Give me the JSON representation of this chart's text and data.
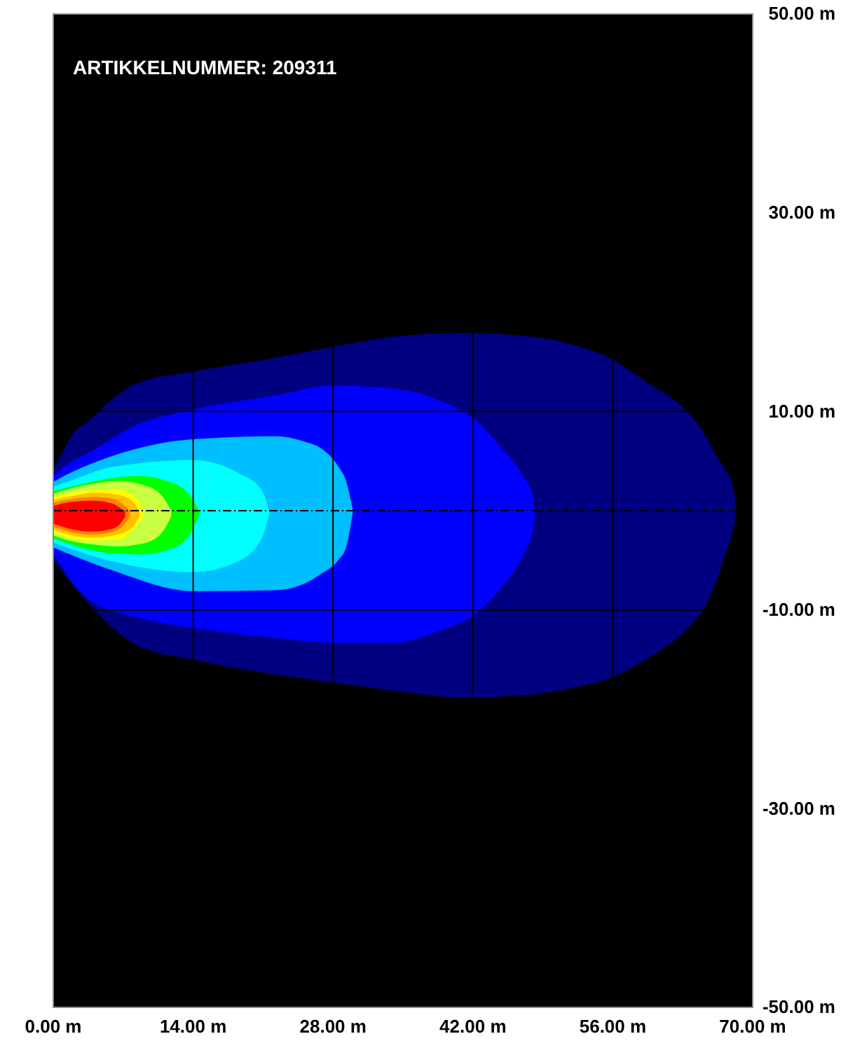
{
  "chart_data": {
    "type": "area",
    "title": "ARTIKKELNUMMER: 209311",
    "xlim": [
      0,
      70
    ],
    "xticks": [
      {
        "value": 0,
        "label": "0.00 m"
      },
      {
        "value": 14,
        "label": "14.00 m"
      },
      {
        "value": 28,
        "label": "28.00 m"
      },
      {
        "value": 42,
        "label": "42.00 m"
      },
      {
        "value": 56,
        "label": "56.00 m"
      },
      {
        "value": 70,
        "label": "70.00 m"
      }
    ],
    "ylim": [
      -50,
      50
    ],
    "yticks": [
      {
        "value": -50,
        "label": "-50.00 m"
      },
      {
        "value": -30,
        "label": "-30.00 m"
      },
      {
        "value": -10,
        "label": "-10.00 m"
      },
      {
        "value": 10,
        "label": "10.00 m"
      },
      {
        "value": 30,
        "label": "30.00 m"
      },
      {
        "value": 50,
        "label": "50.00 m"
      }
    ],
    "grid": true,
    "ref_lines": [
      {
        "axis": "y",
        "value": 0,
        "line_style": "dashed",
        "color": "#000000"
      }
    ],
    "series": [
      {
        "color": "#000080",
        "x": [
          0,
          1,
          2,
          3.5,
          6,
          8.3,
          14,
          22.3,
          28,
          34,
          41,
          48,
          52,
          55,
          59.6,
          63.4,
          65,
          66.2,
          67.2,
          68,
          68.4
        ],
        "values": [
          4.2,
          6,
          7.8,
          9,
          11.3,
          12.8,
          14,
          15.4,
          16.5,
          17.5,
          17.9,
          17.5,
          16.7,
          15.7,
          12.8,
          10,
          8,
          5.8,
          4.2,
          2.5,
          0
        ]
      },
      {
        "color": "#000080",
        "x": [
          0,
          8.3,
          14,
          22.3,
          28,
          34,
          41,
          48,
          52,
          55,
          59.6,
          63.4,
          65,
          66.2,
          67.2,
          68,
          68.4
        ],
        "values": [
          -5,
          -13.5,
          -15,
          -16.5,
          -17.3,
          -18.1,
          -18.8,
          -18.5,
          -17.8,
          -17.1,
          -14.8,
          -11.9,
          -10,
          -7.5,
          -4.5,
          -2,
          0
        ]
      },
      {
        "color": "#0000ff",
        "x": [
          0,
          1.3,
          3.5,
          8.3,
          14,
          22.3,
          28,
          34,
          38.6,
          42.4,
          44.7,
          47,
          48,
          48.2
        ],
        "values": [
          3.5,
          4.6,
          5.8,
          8.6,
          10.2,
          11.6,
          12.6,
          12.3,
          11.1,
          9,
          6.5,
          3.5,
          1.5,
          0
        ]
      },
      {
        "color": "#0000ff",
        "x": [
          0,
          3.5,
          8.3,
          14,
          22.3,
          28,
          34,
          38.6,
          42.4,
          44.7,
          47,
          48,
          48.2
        ],
        "values": [
          -4.3,
          -8.9,
          -10.7,
          -11.8,
          -12.8,
          -13.3,
          -13.3,
          -12.1,
          -10.3,
          -7.9,
          -4.5,
          -2,
          0
        ]
      },
      {
        "color": "#00bfff",
        "x": [
          0,
          1.7,
          5.9,
          14,
          22.3,
          25,
          26.9,
          28.5,
          29.3,
          30
        ],
        "values": [
          2.9,
          3.8,
          5.5,
          7.2,
          7.5,
          7,
          6.2,
          4.5,
          3,
          0
        ]
      },
      {
        "color": "#00bfff",
        "x": [
          0,
          1.7,
          5.9,
          14,
          22.3,
          25,
          26.9,
          28.5,
          29.3,
          30
        ],
        "values": [
          -3.7,
          -4.4,
          -6,
          -8.1,
          -8,
          -7.4,
          -6.3,
          -5,
          -3.7,
          0
        ]
      },
      {
        "color": "#00ffff",
        "x": [
          0,
          1.7,
          5.9,
          14,
          18.5,
          20.9,
          21.6
        ],
        "values": [
          2.4,
          3,
          4.4,
          5.1,
          3.8,
          2,
          0
        ]
      },
      {
        "color": "#00ffff",
        "x": [
          0,
          5.9,
          14,
          18.5,
          20.9,
          21.6
        ],
        "values": [
          -3.2,
          -5.1,
          -6.2,
          -5.1,
          -2.7,
          -0.3
        ]
      },
      {
        "color": "#00ff00",
        "x": [
          0,
          1.7,
          5.9,
          8.8,
          11,
          13.3,
          14.6
        ],
        "values": [
          2,
          2.4,
          3.3,
          3.5,
          3.1,
          2,
          0
        ]
      },
      {
        "color": "#00ff00",
        "x": [
          0,
          5.9,
          8.8,
          11,
          13.3,
          14.6
        ],
        "values": [
          -2.8,
          -4.3,
          -4.4,
          -4.1,
          -2.9,
          -0.4
        ]
      },
      {
        "color": "#c8ff40",
        "x": [
          0,
          2,
          4,
          6.5,
          9,
          10.8,
          11.8
        ],
        "values": [
          1.7,
          2.3,
          2.7,
          3,
          2.6,
          1.6,
          0
        ]
      },
      {
        "color": "#c8ff40",
        "x": [
          0,
          2,
          4,
          6.5,
          9,
          10.8,
          11.8
        ],
        "values": [
          -2.5,
          -3.1,
          -3.4,
          -3.6,
          -3.3,
          -2.3,
          -0.6
        ]
      },
      {
        "color": "#ffff00",
        "x": [
          0,
          2,
          4,
          6.5,
          8.3,
          9
        ],
        "values": [
          1.4,
          1.8,
          2.1,
          2.1,
          1.3,
          0
        ]
      },
      {
        "color": "#ffff00",
        "x": [
          0,
          2,
          4,
          6.5,
          9
        ],
        "values": [
          -2.2,
          -2.8,
          -3,
          -2.9,
          -0.6
        ]
      },
      {
        "color": "#ffc000",
        "x": [
          0,
          2,
          4,
          6,
          7.8,
          8.6
        ],
        "values": [
          1.1,
          1.5,
          1.8,
          1.7,
          1.1,
          0
        ]
      },
      {
        "color": "#ffc000",
        "x": [
          0,
          2,
          4,
          6,
          7.8,
          8.6
        ],
        "values": [
          -1.9,
          -2.5,
          -2.7,
          -2.5,
          -1.8,
          -0.6
        ]
      },
      {
        "color": "#ff8000",
        "x": [
          0,
          2,
          4,
          6,
          7,
          7.7
        ],
        "values": [
          0.8,
          1.2,
          1.4,
          1.2,
          0.6,
          0
        ]
      },
      {
        "color": "#ff8000",
        "x": [
          0,
          2,
          4,
          6,
          7,
          7.7
        ],
        "values": [
          -1.6,
          -2.2,
          -2.4,
          -2.1,
          -1.5,
          -0.6
        ]
      },
      {
        "color": "#ff0000",
        "x": [
          0,
          2,
          4,
          6,
          6.8,
          7.2
        ],
        "values": [
          0.5,
          0.9,
          1,
          0.7,
          0.2,
          0
        ]
      },
      {
        "color": "#ff0000",
        "x": [
          0,
          2,
          4,
          6,
          6.8,
          7.2
        ],
        "values": [
          -1.3,
          -1.9,
          -2.1,
          -1.8,
          -1.2,
          -0.6
        ]
      }
    ]
  }
}
